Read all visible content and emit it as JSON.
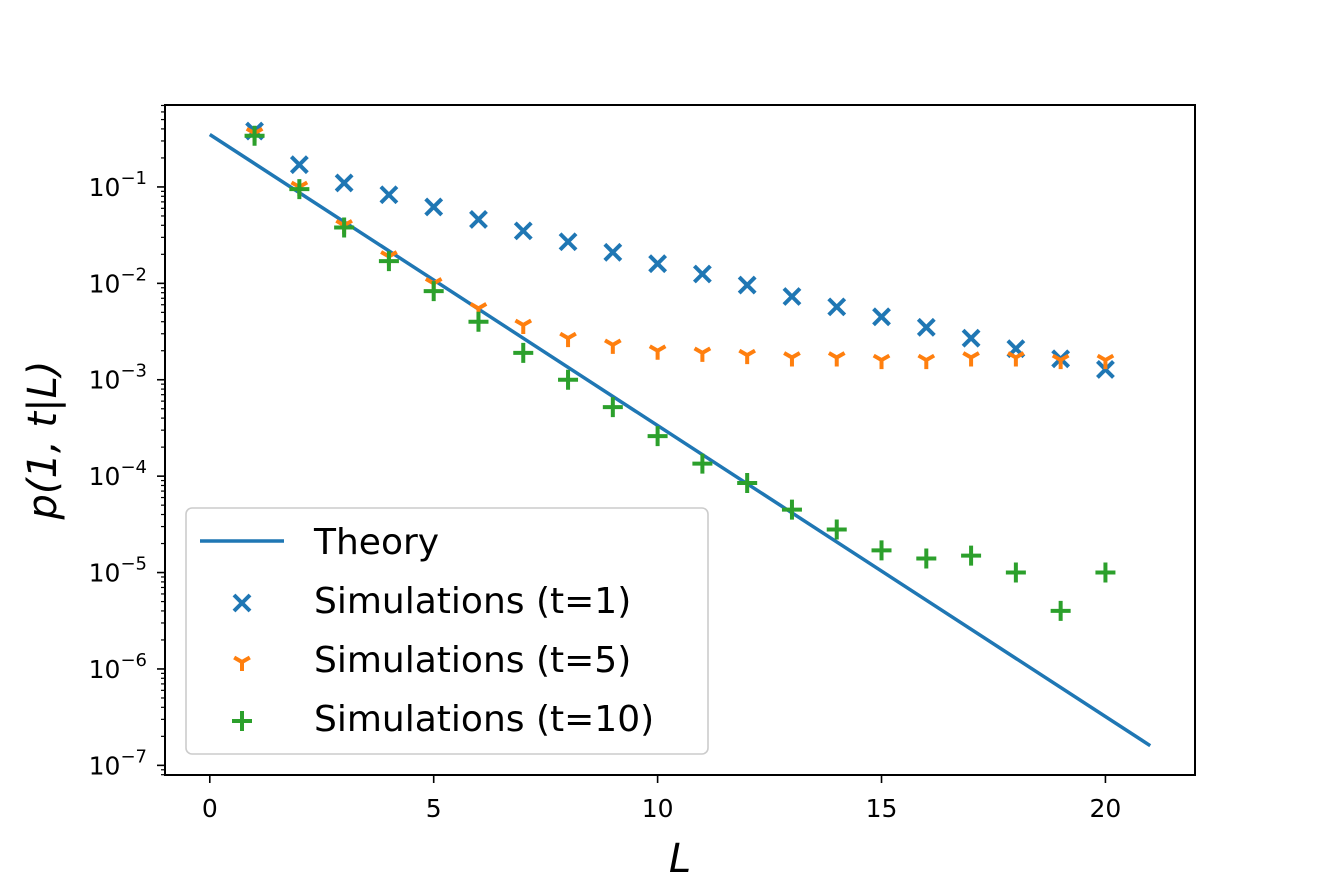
{
  "chart_data": {
    "type": "scatter",
    "xlabel": "L",
    "ylabel": "p(1, t|L)",
    "xlim": [
      -1,
      22
    ],
    "ylim_log10": [
      -7.1,
      -0.15
    ],
    "yscale": "log",
    "xticks": [
      {
        "value": 0,
        "label": "0"
      },
      {
        "value": 5,
        "label": "5"
      },
      {
        "value": 10,
        "label": "10"
      },
      {
        "value": 15,
        "label": "15"
      },
      {
        "value": 20,
        "label": "20"
      }
    ],
    "yticks": [
      {
        "exp": -1,
        "label": "10",
        "sup": "−1"
      },
      {
        "exp": -2,
        "label": "10",
        "sup": "−2"
      },
      {
        "exp": -3,
        "label": "10",
        "sup": "−3"
      },
      {
        "exp": -4,
        "label": "10",
        "sup": "−4"
      },
      {
        "exp": -5,
        "label": "10",
        "sup": "−5"
      },
      {
        "exp": -6,
        "label": "10",
        "sup": "−6"
      },
      {
        "exp": -7,
        "label": "10",
        "sup": "−7"
      }
    ],
    "series": [
      {
        "name": "Theory",
        "kind": "line",
        "color": "#1f77b4",
        "x": [
          0,
          21
        ],
        "y": [
          0.35,
          1.6e-07
        ]
      },
      {
        "name": "Simulations (t=1)",
        "kind": "marker",
        "marker": "x",
        "color": "#1f77b4",
        "x": [
          1,
          2,
          3,
          4,
          5,
          6,
          7,
          8,
          9,
          10,
          11,
          12,
          13,
          14,
          15,
          16,
          17,
          18,
          19,
          20
        ],
        "y": [
          0.38,
          0.17,
          0.11,
          0.083,
          0.062,
          0.046,
          0.035,
          0.027,
          0.021,
          0.016,
          0.0125,
          0.0096,
          0.0073,
          0.0057,
          0.0045,
          0.0035,
          0.0027,
          0.0021,
          0.00165,
          0.00128
        ]
      },
      {
        "name": "Simulations (t=5)",
        "kind": "marker",
        "marker": "tri_down",
        "color": "#ff7f0e",
        "x": [
          1,
          2,
          3,
          4,
          5,
          6,
          7,
          8,
          9,
          10,
          11,
          12,
          13,
          14,
          15,
          16,
          17,
          18,
          19,
          20
        ],
        "y": [
          0.36,
          0.1,
          0.04,
          0.019,
          0.01,
          0.0055,
          0.0037,
          0.0027,
          0.0023,
          0.002,
          0.0019,
          0.0018,
          0.0017,
          0.0017,
          0.0016,
          0.0016,
          0.0017,
          0.0017,
          0.0016,
          0.0016
        ]
      },
      {
        "name": "Simulations (t=10)",
        "kind": "marker",
        "marker": "plus",
        "color": "#2ca02c",
        "x": [
          1,
          2,
          3,
          4,
          5,
          6,
          7,
          8,
          9,
          10,
          11,
          12,
          13,
          14,
          15,
          16,
          17,
          18,
          19,
          20
        ],
        "y": [
          0.34,
          0.095,
          0.038,
          0.017,
          0.0083,
          0.004,
          0.0019,
          0.001,
          0.00052,
          0.00026,
          0.000135,
          8.5e-05,
          4.5e-05,
          2.8e-05,
          1.7e-05,
          1.4e-05,
          1.5e-05,
          1e-05,
          4e-06,
          1e-05
        ]
      }
    ],
    "legend": {
      "position": "lower-left"
    }
  }
}
